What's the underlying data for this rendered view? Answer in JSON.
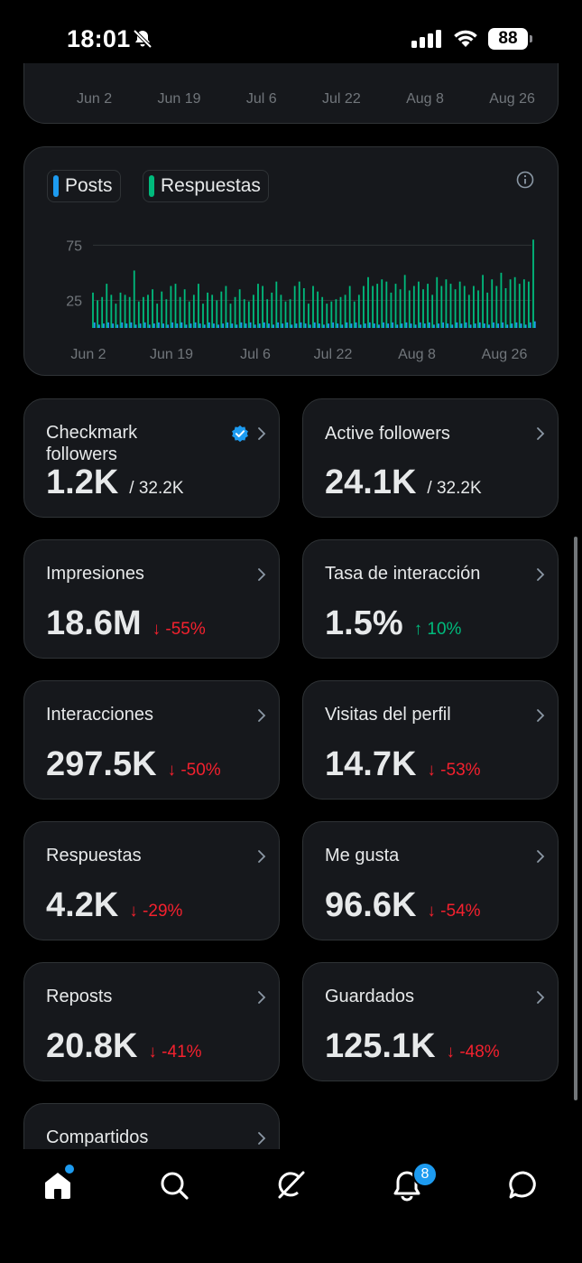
{
  "status_bar": {
    "time": "18:01",
    "battery": "88"
  },
  "top_chart": {
    "x_ticks": [
      "Jun 2",
      "Jun 19",
      "Jul 6",
      "Jul 22",
      "Aug 8",
      "Aug 26"
    ]
  },
  "chart_data": {
    "type": "bar",
    "legend": [
      "Posts",
      "Respuestas"
    ],
    "y_ticks": [
      "75",
      "25"
    ],
    "x_ticks": [
      "Jun 2",
      "Jun 19",
      "Jul 6",
      "Jul 22",
      "Aug 8",
      "Aug 26"
    ],
    "ylim": [
      0,
      90
    ],
    "grid": true,
    "series": [
      {
        "name": "Respuestas",
        "color": "#00ba7c",
        "values": [
          32,
          25,
          28,
          40,
          30,
          22,
          32,
          30,
          28,
          52,
          24,
          28,
          30,
          35,
          22,
          33,
          26,
          38,
          40,
          28,
          35,
          24,
          30,
          40,
          22,
          32,
          30,
          25,
          33,
          38,
          22,
          28,
          35,
          26,
          24,
          30,
          40,
          38,
          26,
          32,
          42,
          30,
          24,
          26,
          38,
          42,
          36,
          22,
          38,
          33,
          28,
          22,
          24,
          26,
          28,
          30,
          38,
          24,
          30,
          38,
          46,
          38,
          40,
          44,
          42,
          32,
          40,
          35,
          48,
          34,
          38,
          42,
          35,
          40,
          30,
          46,
          38,
          44,
          40,
          35,
          42,
          38,
          30,
          38,
          34,
          48,
          32,
          44,
          38,
          50,
          36,
          44,
          46,
          40,
          44,
          42,
          80
        ]
      },
      {
        "name": "Posts",
        "color": "#1d9bf0",
        "values": [
          5,
          3,
          4,
          5,
          4,
          3,
          5,
          4,
          5,
          3,
          4,
          5,
          3,
          4,
          5,
          4,
          3,
          5,
          4,
          5,
          3,
          4,
          5,
          4,
          3,
          5,
          4,
          3,
          4,
          5,
          4,
          3,
          5,
          4,
          5,
          3,
          4,
          5,
          4,
          3,
          5,
          4,
          5,
          3,
          4,
          5,
          4,
          3,
          5,
          4,
          3,
          4,
          5,
          4,
          3,
          5,
          4,
          5,
          3,
          4,
          5,
          4,
          3,
          5,
          4,
          5,
          3,
          4,
          5,
          4,
          3,
          5,
          4,
          5,
          3,
          4,
          5,
          4,
          3,
          5,
          4,
          5,
          3,
          4,
          5,
          4,
          3,
          5,
          4,
          5,
          3,
          4,
          5,
          4,
          3,
          5,
          6
        ]
      }
    ]
  },
  "stats": [
    {
      "title": "Checkmark followers",
      "value": "1.2K",
      "sub": "/ 32.2K",
      "verified": true
    },
    {
      "title": "Active followers",
      "value": "24.1K",
      "sub": "/ 32.2K"
    },
    {
      "title": "Impresiones",
      "value": "18.6M",
      "change": "↓ -55%",
      "direction": "down"
    },
    {
      "title": "Tasa de interacción",
      "value": "1.5%",
      "change": "↑ 10%",
      "direction": "up"
    },
    {
      "title": "Interacciones",
      "value": "297.5K",
      "change": "↓ -50%",
      "direction": "down"
    },
    {
      "title": "Visitas del perfil",
      "value": "14.7K",
      "change": "↓ -53%",
      "direction": "down"
    },
    {
      "title": "Respuestas",
      "value": "4.2K",
      "change": "↓ -29%",
      "direction": "down"
    },
    {
      "title": "Me gusta",
      "value": "96.6K",
      "change": "↓ -54%",
      "direction": "down"
    },
    {
      "title": "Reposts",
      "value": "20.8K",
      "change": "↓ -41%",
      "direction": "down"
    },
    {
      "title": "Guardados",
      "value": "125.1K",
      "change": "↓ -48%",
      "direction": "down"
    },
    {
      "title": "Compartidos"
    }
  ],
  "tab_bar": {
    "items": [
      {
        "icon": "home-icon"
      },
      {
        "icon": "search-icon"
      },
      {
        "icon": "grok-icon"
      },
      {
        "icon": "bell-icon"
      },
      {
        "icon": "messages-icon"
      }
    ],
    "notifications_badge": "8"
  }
}
